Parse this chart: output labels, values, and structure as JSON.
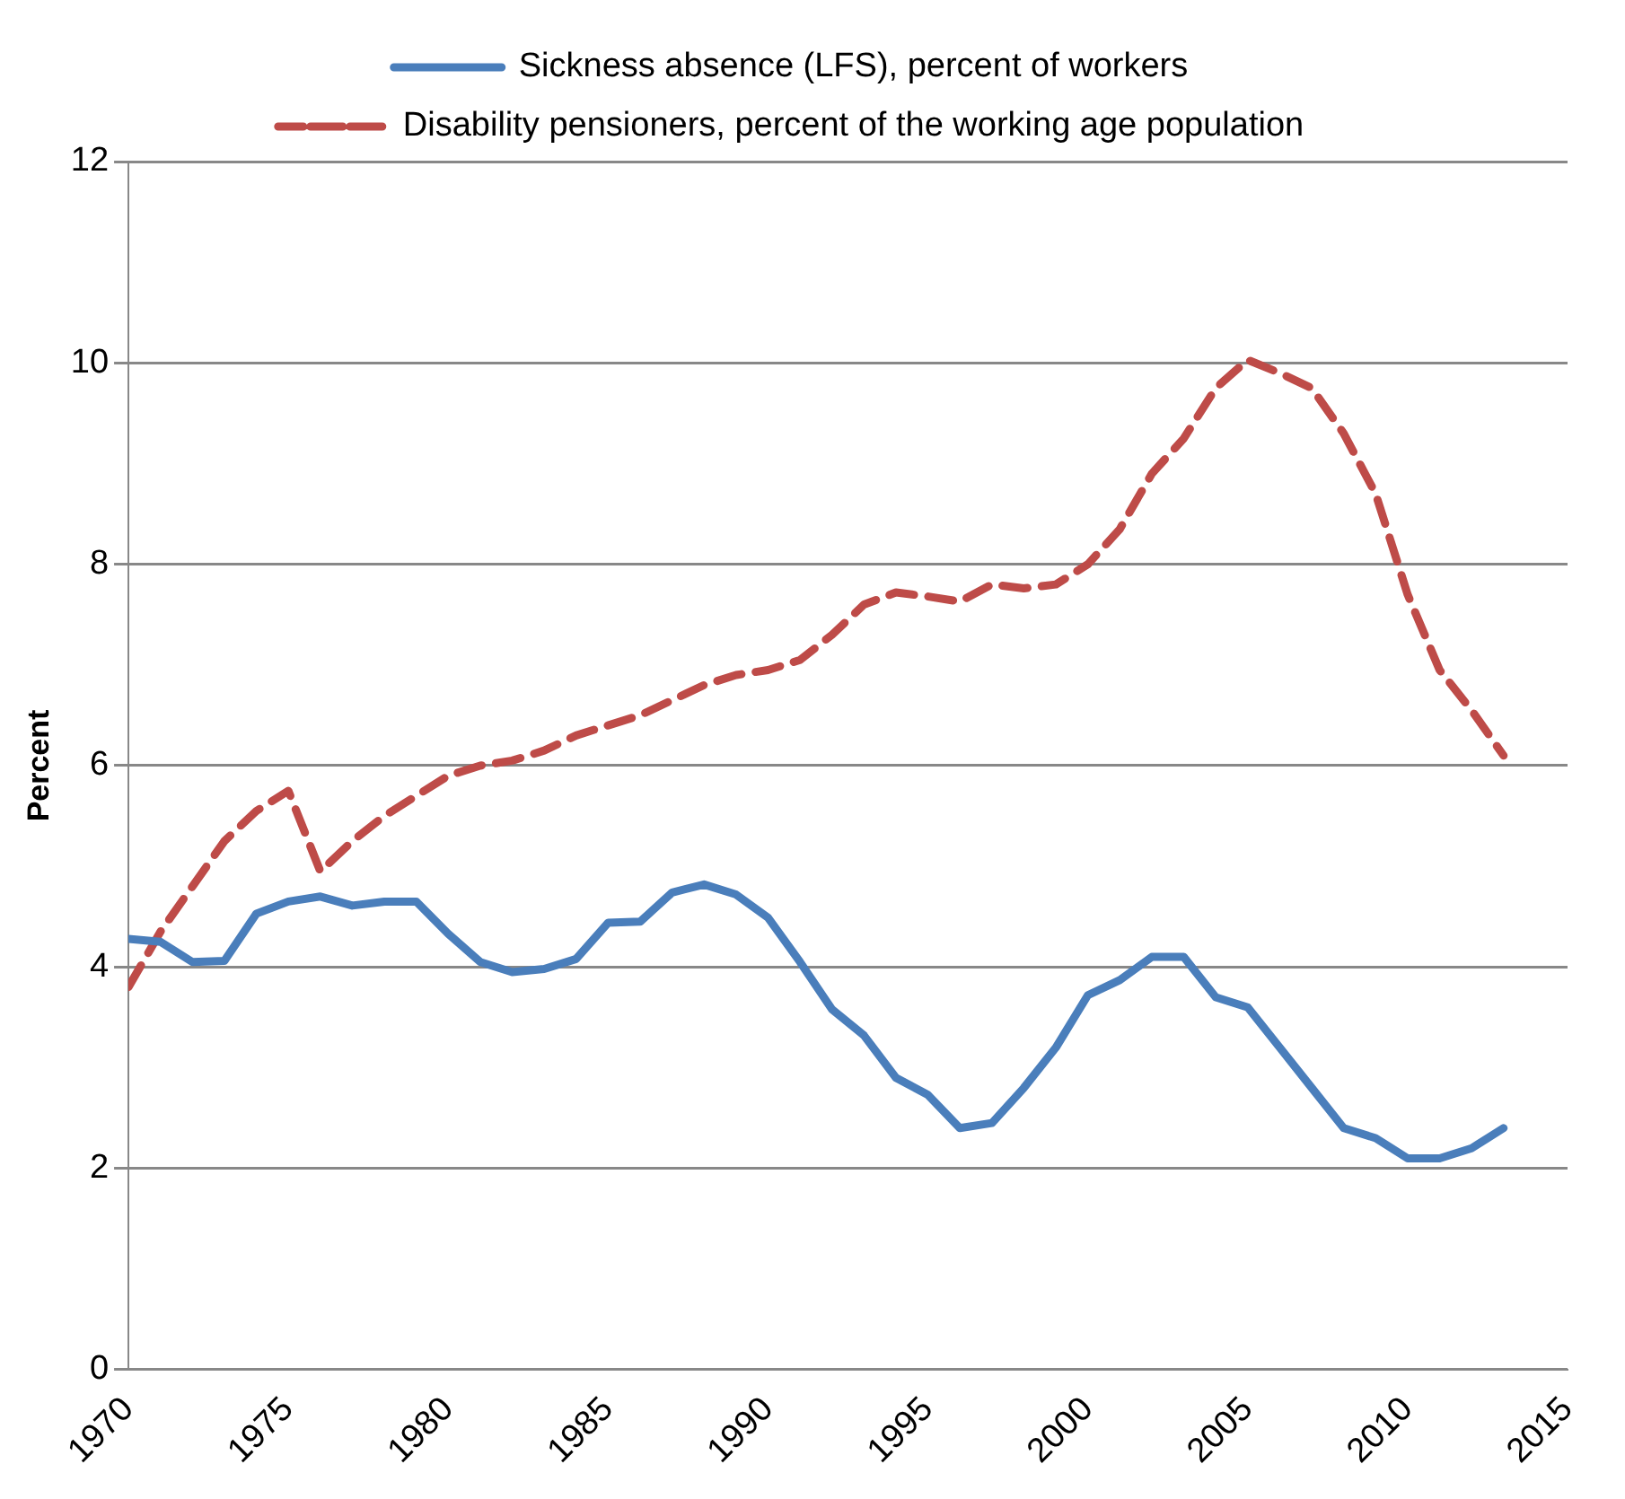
{
  "chart_data": {
    "type": "line",
    "ylabel": "Percent",
    "legend": "top",
    "grid": "y",
    "marker": "none",
    "x": [
      1970,
      1971,
      1972,
      1973,
      1974,
      1975,
      1976,
      1977,
      1978,
      1979,
      1980,
      1981,
      1982,
      1983,
      1984,
      1985,
      1986,
      1987,
      1988,
      1989,
      1990,
      1991,
      1992,
      1993,
      1994,
      1995,
      1996,
      1997,
      1998,
      1999,
      2000,
      2001,
      2002,
      2003,
      2004,
      2005,
      2006,
      2007,
      2008,
      2009,
      2010,
      2011,
      2012,
      2013
    ],
    "xlim": [
      1970,
      2015
    ],
    "xticks": [
      1970,
      1975,
      1980,
      1985,
      1990,
      1995,
      2000,
      2005,
      2010,
      2015
    ],
    "ylim": [
      0,
      12
    ],
    "yticks": [
      0,
      2,
      4,
      6,
      8,
      10,
      12
    ],
    "series": [
      {
        "name": "Sickness absence (LFS), percent of workers",
        "color": "#4a7ebb",
        "line_style": "solid",
        "values": [
          4.28,
          4.25,
          4.05,
          4.06,
          4.53,
          4.65,
          4.7,
          4.61,
          4.65,
          4.65,
          4.33,
          4.05,
          3.95,
          3.98,
          4.08,
          4.44,
          4.45,
          4.74,
          4.82,
          4.72,
          4.49,
          4.05,
          3.58,
          3.32,
          2.9,
          2.73,
          2.4,
          2.45,
          2.8,
          3.2,
          3.72,
          3.87,
          4.1,
          4.1,
          3.7,
          3.6,
          3.2,
          2.8,
          2.4,
          2.3,
          2.1,
          2.1,
          2.2,
          2.4
        ]
      },
      {
        "name": "Disability pensioners, percent of the working age population",
        "color": "#be4b48",
        "line_style": "dashed",
        "values": [
          3.8,
          4.35,
          4.8,
          5.25,
          5.55,
          5.75,
          4.95,
          5.25,
          5.5,
          5.7,
          5.9,
          6.0,
          6.05,
          6.15,
          6.3,
          6.4,
          6.5,
          6.65,
          6.8,
          6.9,
          6.95,
          7.05,
          7.3,
          7.6,
          7.72,
          7.68,
          7.63,
          7.8,
          7.76,
          7.8,
          8.0,
          8.35,
          8.9,
          9.25,
          9.75,
          10.03,
          9.9,
          9.75,
          9.3,
          8.7,
          7.7,
          6.95,
          6.55,
          6.1
        ]
      }
    ]
  }
}
